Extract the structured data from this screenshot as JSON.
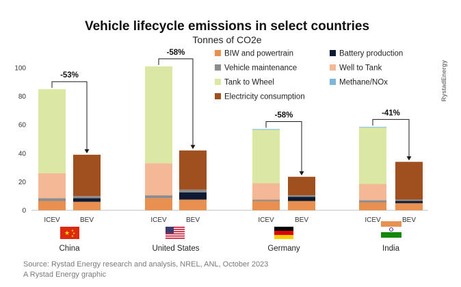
{
  "chart_data": {
    "type": "bar",
    "stacked": true,
    "title": "Vehicle lifecycle emissions in select countries",
    "subtitle": "Tonnes of CO2e",
    "ylim": [
      0,
      100
    ],
    "yticks": [
      0,
      20,
      40,
      60,
      80,
      100
    ],
    "bar_labels": [
      "ICEV",
      "BEV"
    ],
    "series": [
      {
        "name": "BIW and powertrain",
        "color": "#e8904f"
      },
      {
        "name": "Battery production",
        "color": "#0d1a33"
      },
      {
        "name": "Vehicle maintenance",
        "color": "#8c8c8c"
      },
      {
        "name": "Well to Tank",
        "color": "#f5b896"
      },
      {
        "name": "Tank to Wheel",
        "color": "#dbe8a3"
      },
      {
        "name": "Methane/NOx",
        "color": "#7ab8d9"
      },
      {
        "name": "Electricity consumption",
        "color": "#a0501e"
      }
    ],
    "groups": [
      {
        "country": "China",
        "change": "-53%",
        "ICEV": {
          "BIW and powertrain": 6.5,
          "Battery production": 0,
          "Vehicle maintenance": 2,
          "Well to Tank": 17.5,
          "Tank to Wheel": 59,
          "Methane/NOx": 0,
          "Electricity consumption": 0
        },
        "BEV": {
          "BIW and powertrain": 6,
          "Battery production": 2.5,
          "Vehicle maintenance": 1.5,
          "Well to Tank": 0,
          "Tank to Wheel": 0,
          "Methane/NOx": 0,
          "Electricity consumption": 29
        }
      },
      {
        "country": "United States",
        "change": "-58%",
        "ICEV": {
          "BIW and powertrain": 8.5,
          "Battery production": 0,
          "Vehicle maintenance": 2,
          "Well to Tank": 22.5,
          "Tank to Wheel": 68,
          "Methane/NOx": 0,
          "Electricity consumption": 0
        },
        "BEV": {
          "BIW and powertrain": 7.5,
          "Battery production": 5,
          "Vehicle maintenance": 2,
          "Well to Tank": 0,
          "Tank to Wheel": 0,
          "Methane/NOx": 0,
          "Electricity consumption": 27.5
        }
      },
      {
        "country": "Germany",
        "change": "-58%",
        "ICEV": {
          "BIW and powertrain": 6.5,
          "Battery production": 0,
          "Vehicle maintenance": 1,
          "Well to Tank": 11.5,
          "Tank to Wheel": 37.5,
          "Methane/NOx": 0.5,
          "Electricity consumption": 0
        },
        "BEV": {
          "BIW and powertrain": 6.5,
          "Battery production": 3,
          "Vehicle maintenance": 1,
          "Well to Tank": 0,
          "Tank to Wheel": 0,
          "Methane/NOx": 0,
          "Electricity consumption": 13
        }
      },
      {
        "country": "India",
        "change": "-41%",
        "ICEV": {
          "BIW and powertrain": 5.5,
          "Battery production": 0,
          "Vehicle maintenance": 1.5,
          "Well to Tank": 11.5,
          "Tank to Wheel": 39.5,
          "Methane/NOx": 0.5,
          "Electricity consumption": 0
        },
        "BEV": {
          "BIW and powertrain": 5,
          "Battery production": 1.5,
          "Vehicle maintenance": 1,
          "Well to Tank": 0,
          "Tank to Wheel": 0,
          "Methane/NOx": 0,
          "Electricity consumption": 26.5
        }
      }
    ]
  },
  "source_line1": "Source: Rystad Energy research and analysis, NREL, ANL, October 2023",
  "source_line2": "A Rystad Energy graphic",
  "brand": "RystadEnergy"
}
